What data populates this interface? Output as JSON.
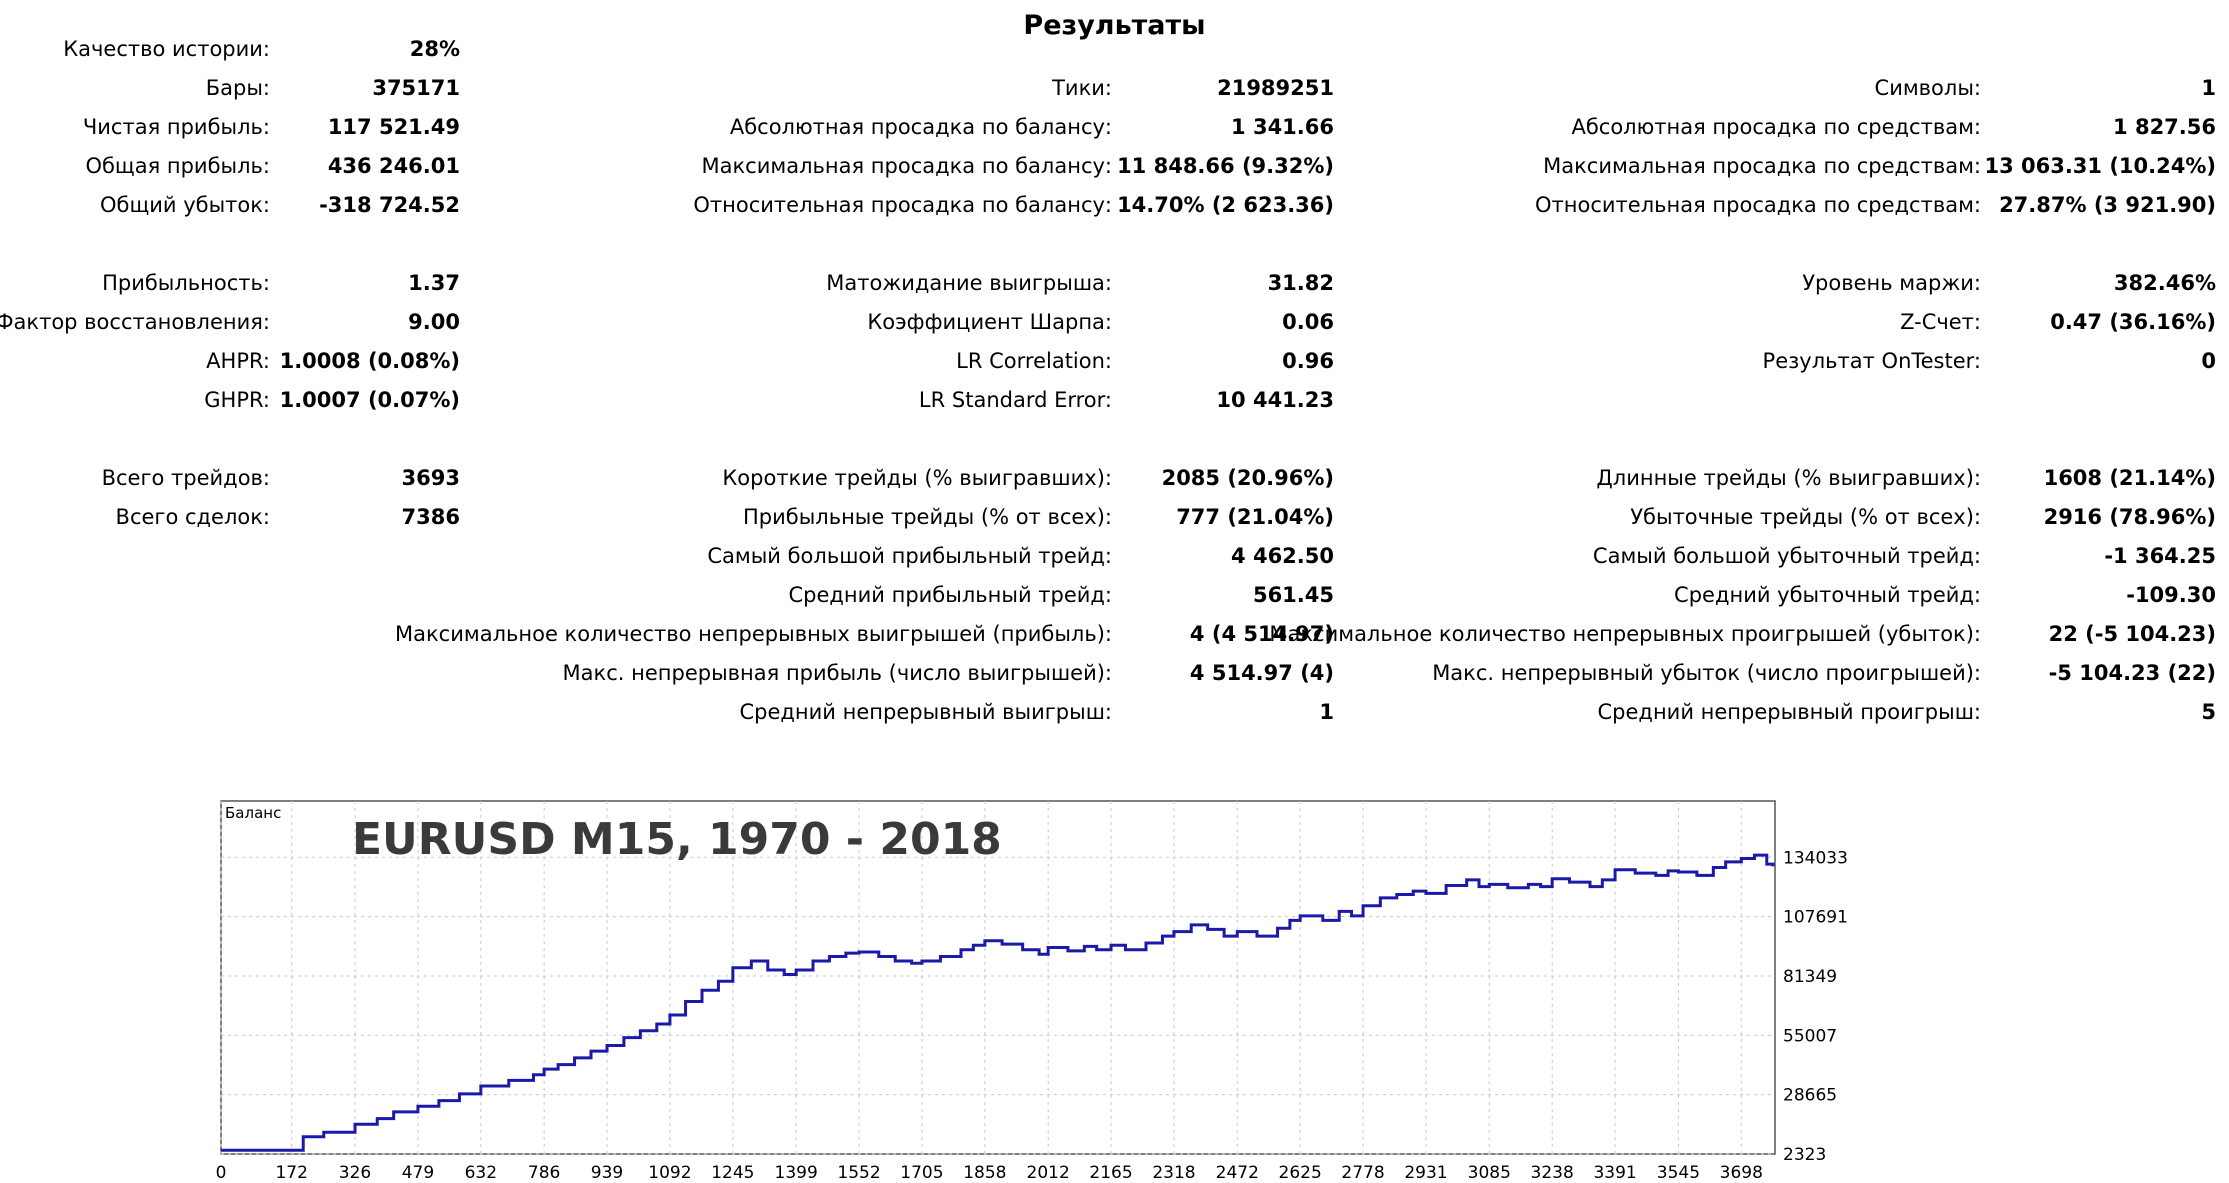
{
  "report": {
    "title": "Результаты",
    "col1": [
      {
        "label": "Качество истории:",
        "value": "28%",
        "row": 0
      },
      {
        "label": "Бары:",
        "value": "375171",
        "row": 1
      },
      {
        "label": "Чистая прибыль:",
        "value": "117 521.49",
        "row": 2
      },
      {
        "label": "Общая прибыль:",
        "value": "436 246.01",
        "row": 3
      },
      {
        "label": "Общий убыток:",
        "value": "-318 724.52",
        "row": 4
      },
      {
        "label": "Прибыльность:",
        "value": "1.37",
        "row": 6
      },
      {
        "label": "Фактор восстановления:",
        "value": "9.00",
        "row": 7
      },
      {
        "label": "AHPR:",
        "value": "1.0008 (0.08%)",
        "row": 8
      },
      {
        "label": "GHPR:",
        "value": "1.0007 (0.07%)",
        "row": 9
      },
      {
        "label": "Всего трейдов:",
        "value": "3693",
        "row": 11
      },
      {
        "label": "Всего сделок:",
        "value": "7386",
        "row": 12
      }
    ],
    "col2": [
      {
        "label": "Тики:",
        "value": "21989251",
        "row": 1
      },
      {
        "label": "Абсолютная просадка по балансу:",
        "value": "1 341.66",
        "row": 2
      },
      {
        "label": "Максимальная просадка по балансу:",
        "value": "11 848.66 (9.32%)",
        "row": 3
      },
      {
        "label": "Относительная просадка по балансу:",
        "value": "14.70% (2 623.36)",
        "row": 4
      },
      {
        "label": "Матожидание выигрыша:",
        "value": "31.82",
        "row": 6
      },
      {
        "label": "Коэффициент Шарпа:",
        "value": "0.06",
        "row": 7
      },
      {
        "label": "LR Correlation:",
        "value": "0.96",
        "row": 8
      },
      {
        "label": "LR Standard Error:",
        "value": "10 441.23",
        "row": 9
      },
      {
        "label": "Короткие трейды (% выигравших):",
        "value": "2085 (20.96%)",
        "row": 11
      },
      {
        "label": "Прибыльные трейды (% от всех):",
        "value": "777 (21.04%)",
        "row": 12
      },
      {
        "label": "Самый большой прибыльный трейд:",
        "value": "4 462.50",
        "row": 13
      },
      {
        "label": "Средний прибыльный трейд:",
        "value": "561.45",
        "row": 14
      },
      {
        "label": "Максимальное количество непрерывных выигрышей (прибыль):",
        "value": "4 (4 514.97)",
        "row": 15
      },
      {
        "label": "Макс. непрерывная прибыль (число выигрышей):",
        "value": "4 514.97 (4)",
        "row": 16
      },
      {
        "label": "Средний непрерывный выигрыш:",
        "value": "1",
        "row": 17
      }
    ],
    "col3": [
      {
        "label": "Символы:",
        "value": "1",
        "row": 1
      },
      {
        "label": "Абсолютная просадка по средствам:",
        "value": "1 827.56",
        "row": 2
      },
      {
        "label": "Максимальная просадка по средствам:",
        "value": "13 063.31 (10.24%)",
        "row": 3
      },
      {
        "label": "Относительная просадка по средствам:",
        "value": "27.87% (3 921.90)",
        "row": 4
      },
      {
        "label": "Уровень маржи:",
        "value": "382.46%",
        "row": 6
      },
      {
        "label": "Z-Счет:",
        "value": "0.47 (36.16%)",
        "row": 7
      },
      {
        "label": "Результат OnTester:",
        "value": "0",
        "row": 8
      },
      {
        "label": "Длинные трейды (% выигравших):",
        "value": "1608 (21.14%)",
        "row": 11
      },
      {
        "label": "Убыточные трейды (% от всех):",
        "value": "2916 (78.96%)",
        "row": 12
      },
      {
        "label": "Самый большой убыточный трейд:",
        "value": "-1 364.25",
        "row": 13
      },
      {
        "label": "Средний убыточный трейд:",
        "value": "-109.30",
        "row": 14
      },
      {
        "label": "Максимальное количество непрерывных проигрышей (убыток):",
        "value": "22 (-5 104.23)",
        "row": 15
      },
      {
        "label": "Макс. непрерывный убыток (число проигрышей):",
        "value": "-5 104.23 (22)",
        "row": 16
      },
      {
        "label": "Средний непрерывный проигрыш:",
        "value": "5",
        "row": 17
      }
    ]
  },
  "chart_data": {
    "type": "line",
    "series_label": "Баланс",
    "overlay_title": "EURUSD M15, 1970 - 2018",
    "line_color": "#1a1aa8",
    "grid_color": "#c8c8c8",
    "ylim": [
      2323,
      159000
    ],
    "xlim": [
      0,
      3780
    ],
    "y_ticks": [
      "2323",
      "28665",
      "55007",
      "81349",
      "107691",
      "134033"
    ],
    "y_tick_values": [
      2323,
      28665,
      55007,
      81349,
      107691,
      134033
    ],
    "x_ticks": [
      "0",
      "172",
      "326",
      "479",
      "632",
      "786",
      "939",
      "1092",
      "1245",
      "1399",
      "1552",
      "1705",
      "1858",
      "2012",
      "2165",
      "2318",
      "2472",
      "2625",
      "2778",
      "2931",
      "3085",
      "3238",
      "3391",
      "3545",
      "3698"
    ],
    "x_tick_values": [
      0,
      172,
      326,
      479,
      632,
      786,
      939,
      1092,
      1245,
      1399,
      1552,
      1705,
      1858,
      2012,
      2165,
      2318,
      2472,
      2625,
      2778,
      2931,
      3085,
      3238,
      3391,
      3545,
      3698
    ],
    "x": [
      0,
      60,
      120,
      172,
      200,
      250,
      326,
      380,
      420,
      479,
      530,
      580,
      632,
      700,
      760,
      786,
      820,
      860,
      900,
      939,
      980,
      1020,
      1060,
      1092,
      1130,
      1170,
      1210,
      1245,
      1290,
      1330,
      1370,
      1399,
      1440,
      1480,
      1520,
      1552,
      1600,
      1640,
      1680,
      1705,
      1750,
      1800,
      1830,
      1858,
      1900,
      1950,
      1990,
      2012,
      2060,
      2100,
      2130,
      2165,
      2200,
      2250,
      2290,
      2318,
      2360,
      2400,
      2440,
      2472,
      2520,
      2570,
      2600,
      2625,
      2680,
      2720,
      2750,
      2778,
      2820,
      2860,
      2900,
      2931,
      2980,
      3030,
      3060,
      3085,
      3130,
      3180,
      3210,
      3238,
      3280,
      3330,
      3360,
      3391,
      3440,
      3490,
      3520,
      3545,
      3590,
      3630,
      3660,
      3698,
      3730,
      3760,
      3775
    ],
    "y": [
      4000,
      4000,
      4000,
      4000,
      10000,
      12000,
      15500,
      18000,
      21000,
      23500,
      26000,
      29000,
      32500,
      35000,
      37500,
      40000,
      42000,
      45000,
      48000,
      50500,
      54000,
      57000,
      60000,
      64000,
      70000,
      75000,
      79000,
      85000,
      88000,
      84000,
      82000,
      84000,
      88000,
      90000,
      91500,
      92000,
      90000,
      88000,
      87000,
      88000,
      90000,
      93000,
      95000,
      97000,
      95500,
      93000,
      91000,
      94000,
      92500,
      94500,
      93000,
      95000,
      93000,
      96000,
      99000,
      101000,
      104000,
      102000,
      99000,
      101000,
      99000,
      102500,
      106000,
      108000,
      106000,
      110000,
      108000,
      112500,
      116000,
      117500,
      119000,
      118000,
      121500,
      124000,
      121000,
      122000,
      120500,
      122000,
      121000,
      124500,
      123000,
      121000,
      124000,
      128500,
      127000,
      126000,
      128000,
      127500,
      126000,
      129500,
      132000,
      133500,
      135000,
      131000,
      130000
    ]
  }
}
